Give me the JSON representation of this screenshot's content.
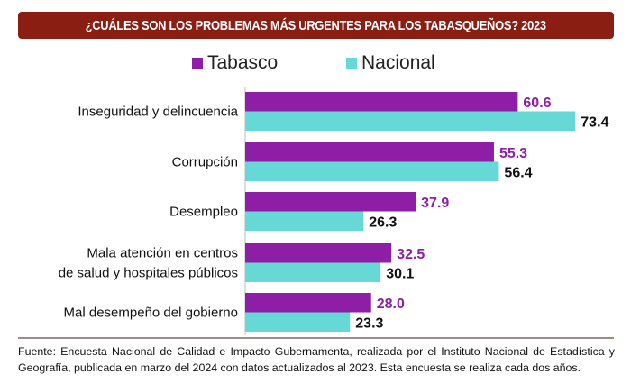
{
  "banner": {
    "title": "¿CUÁLES SON LOS PROBLEMAS MÁS URGENTES PARA LOS TABASQUEÑOS? 2023",
    "background_color": "#8b1e13"
  },
  "chart_data": {
    "type": "bar",
    "orientation": "horizontal",
    "title": "¿CUÁLES SON LOS PROBLEMAS MÁS URGENTES PARA LOS TABASQUEÑOS? 2023",
    "xlabel": "",
    "ylabel": "",
    "xlim": [
      0,
      80
    ],
    "grid": false,
    "legend_position": "top-center",
    "categories": [
      [
        "Inseguridad y delincuencia"
      ],
      [
        "Corrupción"
      ],
      [
        "Desempleo"
      ],
      [
        "Mala atención en centros",
        "de salud y hospitales públicos"
      ],
      [
        "Mal desempeño del gobierno"
      ]
    ],
    "series": [
      {
        "name": "Tabasco",
        "color": "#8e1ea6",
        "label_color": "#8e1ea6",
        "values": [
          60.6,
          55.3,
          37.9,
          32.5,
          28.0
        ],
        "labels": [
          "60.6",
          "55.3",
          "37.9",
          "32.5",
          "28.0"
        ]
      },
      {
        "name": "Nacional",
        "color": "#66d9d6",
        "label_color": "#111111",
        "values": [
          73.4,
          56.4,
          26.3,
          30.1,
          23.3
        ],
        "labels": [
          "73.4",
          "56.4",
          "26.3",
          "30.1",
          "23.3"
        ]
      }
    ]
  },
  "footer": {
    "source": "Fuente: Encuesta Nacional de Calidad e Impacto Gubernamenta, realizada por el Instituto Nacional de Estadística y Geografía, publicada en marzo del 2024 con datos actualizados al 2023. Esta encuesta se realiza cada dos años."
  }
}
